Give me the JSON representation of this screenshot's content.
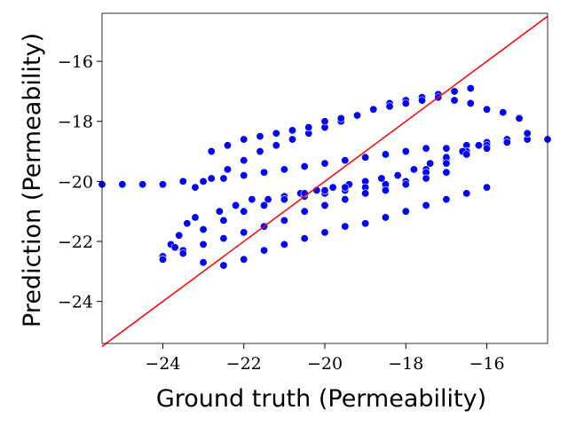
{
  "chart_data": {
    "type": "scatter",
    "title": "",
    "xlabel": "Ground truth (Permeability)",
    "ylabel": "Prediction (Permeability)",
    "xlim": [
      -25.5,
      -14.5
    ],
    "ylim": [
      -25.4,
      -14.4
    ],
    "xticks": [
      -24,
      -22,
      -20,
      -18,
      -16
    ],
    "yticks": [
      -24,
      -22,
      -20,
      -18,
      -16
    ],
    "xtick_labels": [
      "−24",
      "−22",
      "−20",
      "−18",
      "−16"
    ],
    "ytick_labels": [
      "−24",
      "−22",
      "−20",
      "−18",
      "−16"
    ],
    "grid": false,
    "legend": false,
    "colors": {
      "points": "#0000ff",
      "point_edge": "#ffffff",
      "reference_line": "#ff0000"
    },
    "series": [
      {
        "color": "#0000ff",
        "x": [
          -25.5,
          -25.0,
          -24.5,
          -24.0,
          -23.5,
          -23.0,
          -22.5,
          -22.0,
          -21.5,
          -21.0,
          -20.5,
          -20.0,
          -19.5,
          -19.0,
          -18.5,
          -18.0,
          -17.5,
          -17.0,
          -16.5,
          -16.0,
          -15.5,
          -15.0,
          -14.5,
          -24.0,
          -23.5,
          -23.0,
          -22.5,
          -22.0,
          -21.5,
          -21.0,
          -20.5,
          -20.0,
          -19.5,
          -19.0,
          -18.5,
          -18.0,
          -17.5,
          -17.0,
          -16.5,
          -16.0,
          -15.5,
          -15.0,
          -24.0,
          -23.5,
          -23.0,
          -22.5,
          -22.0,
          -21.5,
          -21.0,
          -20.5,
          -20.0,
          -19.5,
          -19.0,
          -18.5,
          -18.0,
          -17.5,
          -17.0,
          -16.5,
          -16.0,
          -23.2,
          -22.8,
          -22.4,
          -22.0,
          -21.6,
          -21.2,
          -20.8,
          -20.4,
          -20.0,
          -19.6,
          -19.2,
          -18.8,
          -18.4,
          -18.0,
          -17.6,
          -17.2,
          -16.8,
          -16.4,
          -24.0,
          -23.8,
          -23.6,
          -23.4,
          -23.7,
          -23.2,
          -22.6,
          -22.2,
          -21.8,
          -21.4,
          -21.0,
          -20.6,
          -20.2,
          -19.8,
          -19.4,
          -19.0,
          -18.6,
          -18.2,
          -17.8,
          -17.4,
          -17.0,
          -16.6,
          -16.2,
          -22.8,
          -22.4,
          -22.0,
          -21.6,
          -21.2,
          -20.8,
          -20.4,
          -20.0,
          -19.6,
          -19.2,
          -18.8,
          -18.4,
          -18.0,
          -17.6,
          -17.2,
          -16.8,
          -16.4,
          -16.0,
          -15.6,
          -15.2,
          -22.0,
          -21.5,
          -21.0,
          -20.5,
          -20.0,
          -19.5,
          -19.0,
          -18.5,
          -18.0,
          -17.5,
          -17.0,
          -16.5,
          -16.0,
          -15.5,
          -23.0,
          -22.5,
          -22.0,
          -21.5,
          -21.0,
          -20.5,
          -20.0,
          -19.5,
          -19.0,
          -18.5,
          -18.0,
          -17.5,
          -17.0
        ],
        "y": [
          -20.1,
          -20.1,
          -20.1,
          -20.1,
          -20.0,
          -20.0,
          -19.9,
          -19.8,
          -19.7,
          -19.6,
          -19.5,
          -19.4,
          -19.3,
          -19.2,
          -19.1,
          -19.0,
          -18.9,
          -18.9,
          -18.8,
          -18.7,
          -18.6,
          -18.6,
          -18.6,
          -22.5,
          -22.3,
          -22.1,
          -21.9,
          -21.7,
          -21.5,
          -21.3,
          -21.0,
          -20.8,
          -20.6,
          -20.4,
          -20.2,
          -20.0,
          -19.6,
          -19.3,
          -19.0,
          -18.8,
          -18.6,
          -18.4,
          -22.6,
          -22.4,
          -22.7,
          -22.8,
          -22.6,
          -22.3,
          -22.1,
          -21.9,
          -21.7,
          -21.5,
          -21.4,
          -21.2,
          -21.0,
          -20.8,
          -20.6,
          -20.4,
          -20.2,
          -20.2,
          -19.9,
          -19.6,
          -19.3,
          -19.0,
          -18.8,
          -18.6,
          -18.4,
          -18.2,
          -18.0,
          -17.8,
          -17.6,
          -17.4,
          -17.3,
          -17.2,
          -17.1,
          -17.0,
          -16.9,
          -22.6,
          -22.1,
          -21.8,
          -21.4,
          -22.2,
          -21.2,
          -21.0,
          -20.8,
          -20.6,
          -20.6,
          -20.5,
          -20.4,
          -20.3,
          -20.2,
          -20.1,
          -20.0,
          -19.9,
          -19.8,
          -19.6,
          -19.4,
          -19.2,
          -19.0,
          -18.8,
          -19.0,
          -18.8,
          -18.6,
          -18.5,
          -18.4,
          -18.3,
          -18.2,
          -18.0,
          -17.9,
          -17.8,
          -17.6,
          -17.5,
          -17.4,
          -17.3,
          -17.2,
          -17.3,
          -17.4,
          -17.6,
          -17.7,
          -17.9,
          -21.0,
          -20.8,
          -20.6,
          -20.5,
          -20.4,
          -20.3,
          -20.2,
          -20.1,
          -20.0,
          -19.7,
          -19.4,
          -19.1,
          -18.9,
          -18.7,
          -21.6,
          -21.3,
          -21.0,
          -20.8,
          -20.6,
          -20.4,
          -20.3,
          -20.2,
          -20.4,
          -20.3,
          -20.1,
          -19.9,
          -19.7
        ]
      }
    ],
    "reference_line": {
      "x": [
        -25.5,
        -14.5
      ],
      "y": [
        -25.5,
        -14.5
      ]
    }
  }
}
